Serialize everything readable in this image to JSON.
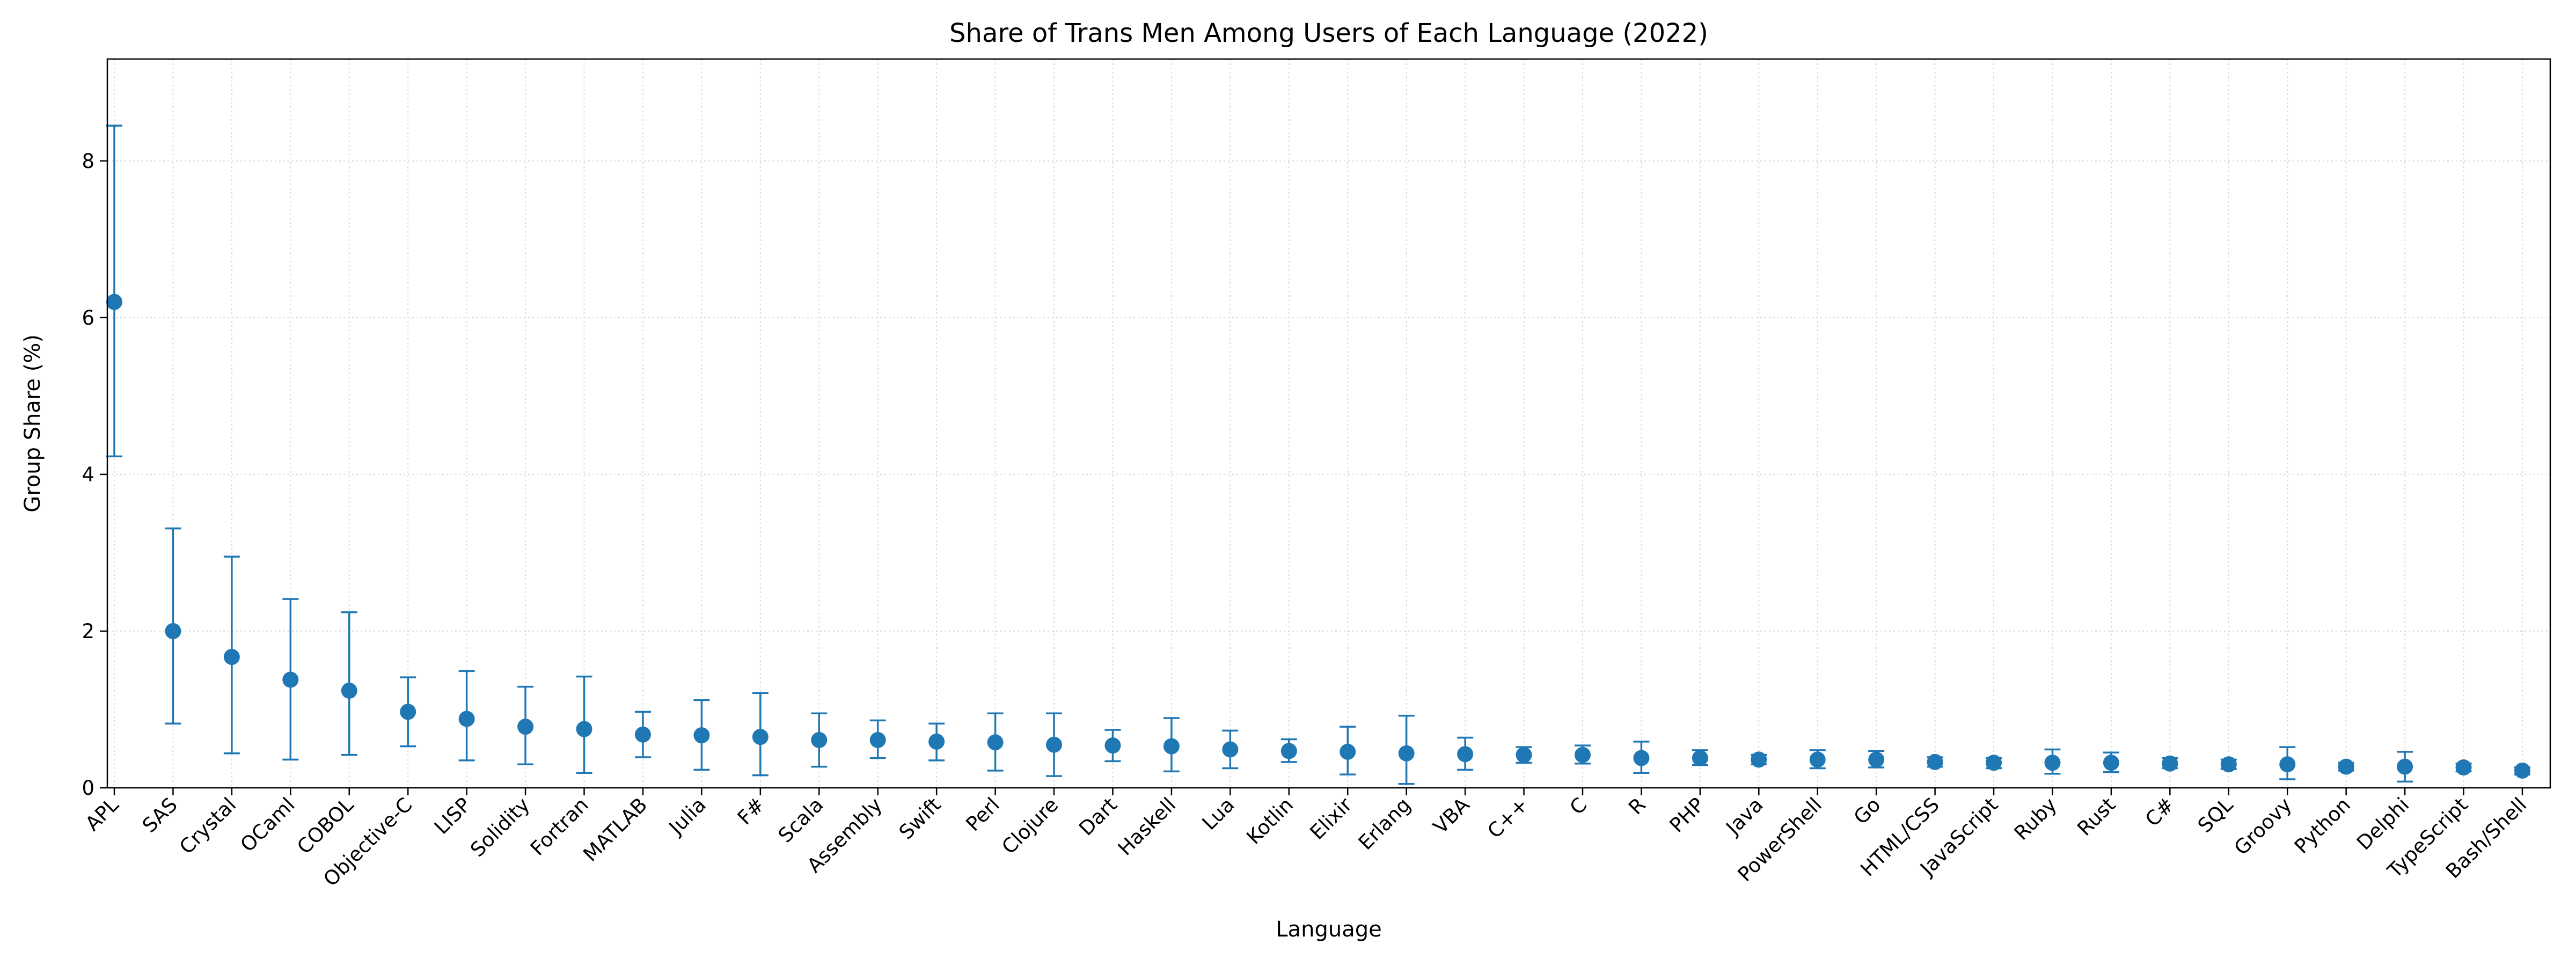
{
  "chart_data": {
    "type": "scatter",
    "title": "Share of Trans Men Among Users of Each Language (2022)",
    "xlabel": "Language",
    "ylabel": "Group Share (%)",
    "ylim": [
      0,
      9.3
    ],
    "yticks": [
      0,
      2,
      4,
      6,
      8
    ],
    "grid": true,
    "color": "#1f77b4",
    "categories": [
      "APL",
      "SAS",
      "Crystal",
      "OCaml",
      "COBOL",
      "Objective-C",
      "LISP",
      "Solidity",
      "Fortran",
      "MATLAB",
      "Julia",
      "F#",
      "Scala",
      "Assembly",
      "Swift",
      "Perl",
      "Clojure",
      "Dart",
      "Haskell",
      "Lua",
      "Kotlin",
      "Elixir",
      "Erlang",
      "VBA",
      "C++",
      "C",
      "R",
      "PHP",
      "Java",
      "PowerShell",
      "Go",
      "HTML/CSS",
      "JavaScript",
      "Ruby",
      "Rust",
      "C#",
      "SQL",
      "Groovy",
      "Python",
      "Delphi",
      "TypeScript",
      "Bash/Shell"
    ],
    "values": [
      6.2,
      2.0,
      1.67,
      1.38,
      1.24,
      0.97,
      0.88,
      0.78,
      0.75,
      0.68,
      0.67,
      0.65,
      0.61,
      0.61,
      0.59,
      0.58,
      0.55,
      0.54,
      0.53,
      0.49,
      0.47,
      0.46,
      0.44,
      0.43,
      0.42,
      0.42,
      0.38,
      0.38,
      0.36,
      0.36,
      0.36,
      0.33,
      0.32,
      0.32,
      0.32,
      0.31,
      0.3,
      0.3,
      0.27,
      0.27,
      0.26,
      0.22
    ],
    "lower": [
      4.23,
      0.82,
      0.44,
      0.36,
      0.42,
      0.53,
      0.35,
      0.3,
      0.19,
      0.39,
      0.23,
      0.16,
      0.27,
      0.38,
      0.35,
      0.22,
      0.15,
      0.34,
      0.21,
      0.25,
      0.33,
      0.17,
      0.05,
      0.23,
      0.32,
      0.31,
      0.19,
      0.29,
      0.3,
      0.25,
      0.26,
      0.27,
      0.25,
      0.18,
      0.2,
      0.25,
      0.24,
      0.11,
      0.22,
      0.08,
      0.21,
      0.17
    ],
    "upper": [
      8.45,
      3.31,
      2.95,
      2.41,
      2.24,
      1.41,
      1.49,
      1.29,
      1.42,
      0.97,
      1.12,
      1.21,
      0.95,
      0.86,
      0.82,
      0.95,
      0.95,
      0.74,
      0.89,
      0.73,
      0.62,
      0.78,
      0.92,
      0.64,
      0.52,
      0.54,
      0.59,
      0.48,
      0.42,
      0.48,
      0.47,
      0.39,
      0.38,
      0.49,
      0.45,
      0.38,
      0.36,
      0.52,
      0.32,
      0.46,
      0.31,
      0.26
    ]
  }
}
